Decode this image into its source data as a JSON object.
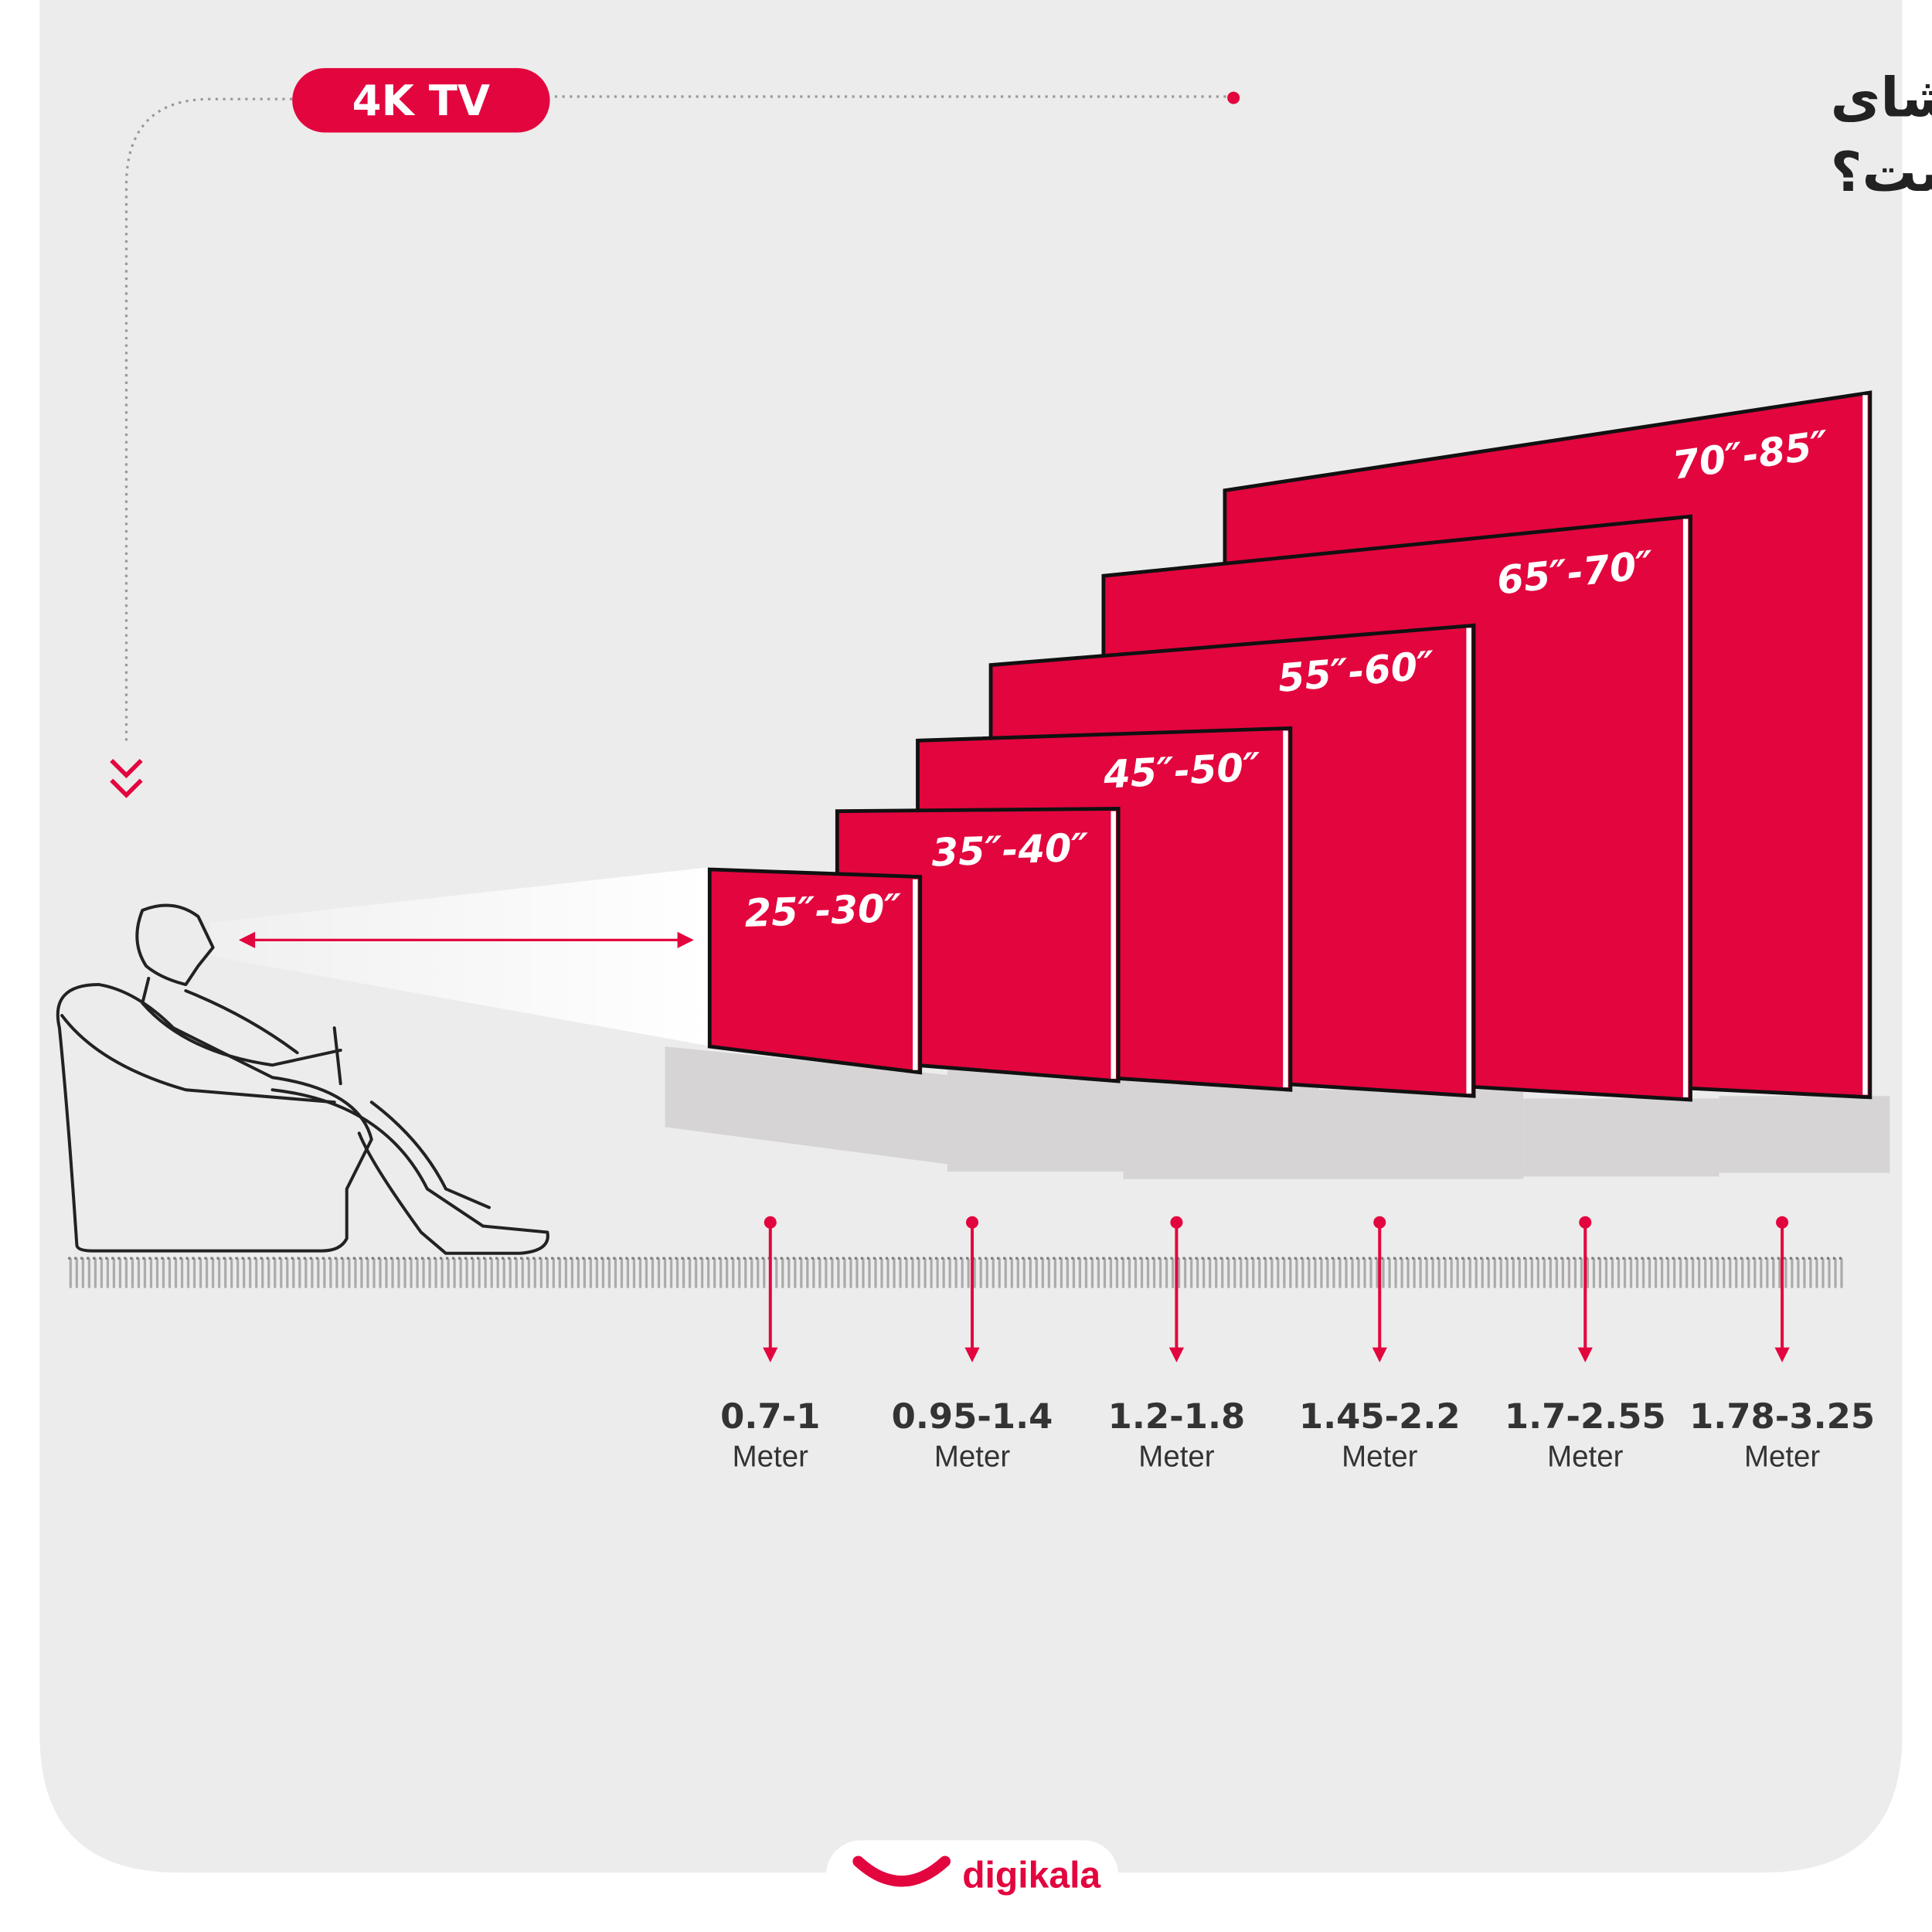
{
  "header": {
    "badge": "4K TV",
    "title_line1": "بهتریـن فاصله تماشای",
    "title_line2": "تلویزیـون چند متراست؟"
  },
  "colors": {
    "accent": "#e3053e",
    "background": "#ececec",
    "stand": "#d8d6d6"
  },
  "tvs": [
    {
      "size": "25″-30″",
      "distance": "0.7-1",
      "unit": "Meter"
    },
    {
      "size": "35″-40″",
      "distance": "0.95-1.4",
      "unit": "Meter"
    },
    {
      "size": "45″-50″",
      "distance": "1.2-1.8",
      "unit": "Meter"
    },
    {
      "size": "55″-60″",
      "distance": "1.45-2.2",
      "unit": "Meter"
    },
    {
      "size": "65″-70″",
      "distance": "1.7-2.55",
      "unit": "Meter"
    },
    {
      "size": "70″-85″",
      "distance": "1.78-3.25",
      "unit": "Meter"
    }
  ],
  "icons": {
    "viewer": "person-in-armchair-icon",
    "arrows": "double-chevron-down-icon"
  },
  "footer": {
    "logo": "digikala"
  }
}
